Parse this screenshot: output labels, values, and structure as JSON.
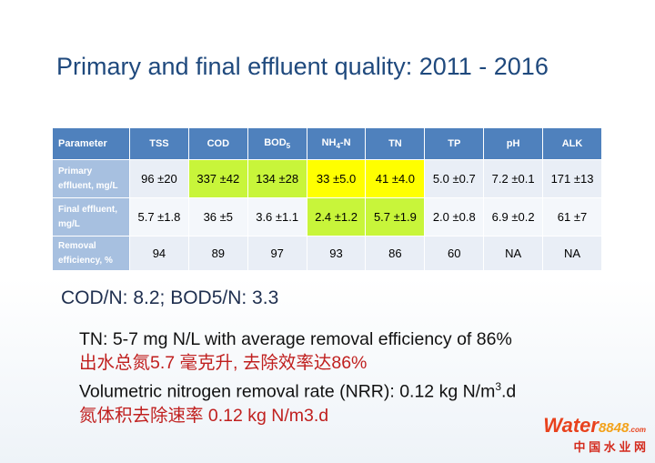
{
  "title": "Primary and final effluent quality: 2011 - 2016",
  "table": {
    "header": [
      "Parameter",
      "TSS",
      "COD",
      {
        "main": "BOD",
        "sub": "5"
      },
      {
        "main": "NH",
        "sub": "4",
        "rest": "-N"
      },
      "TN",
      "TP",
      "pH",
      "ALK"
    ],
    "rows": [
      {
        "label": "Primary effluent, mg/L",
        "cells": [
          "96 ±20",
          "337 ±42",
          "134 ±28",
          "33 ±5.0",
          "41 ±4.0",
          "5.0 ±0.7",
          "7.2 ±0.1",
          "171 ±13"
        ],
        "cell_colors": [
          "#e9eef6",
          "#c8f53a",
          "#c8f53a",
          "#ffff00",
          "#ffff00",
          "#e9eef6",
          "#e9eef6",
          "#e9eef6"
        ]
      },
      {
        "label": "Final effluent, mg/L",
        "cells": [
          "5.7 ±1.8",
          "36 ±5",
          "3.6 ±1.1",
          "2.4 ±1.2",
          "5.7 ±1.9",
          "2.0 ±0.8",
          "6.9 ±0.2",
          "61 ±7"
        ],
        "cell_colors": [
          "#f4f7fb",
          "#f4f7fb",
          "#f4f7fb",
          "#c8f53a",
          "#c8f53a",
          "#f4f7fb",
          "#f4f7fb",
          "#f4f7fb"
        ]
      },
      {
        "label": "Removal efficiency, %",
        "cells": [
          "94",
          "89",
          "97",
          "93",
          "86",
          "60",
          "NA",
          "NA"
        ],
        "cell_colors": [
          "#e9eef6",
          "#e9eef6",
          "#e9eef6",
          "#e9eef6",
          "#e9eef6",
          "#e9eef6",
          "#e9eef6",
          "#e9eef6"
        ]
      }
    ]
  },
  "ratio_line": "COD/N: 8.2; BOD5/N: 3.3",
  "bullets": [
    {
      "text": "TN: 5-7 mg N/L with average removal efficiency of 86%"
    },
    {
      "text": "出水总氮5.7 毫克升, 去除效率达86%"
    },
    {
      "text": "Volumetric nitrogen removal rate (NRR): 0.12 kg N/m",
      "sup": "3",
      "rest": ".d"
    },
    {
      "text": "氮体积去除速率 0.12 kg N/m3.d"
    }
  ],
  "watermark": {
    "brand": "Water",
    "number": "8848",
    "domain": ".com",
    "name": "中 国 水 业 网"
  }
}
